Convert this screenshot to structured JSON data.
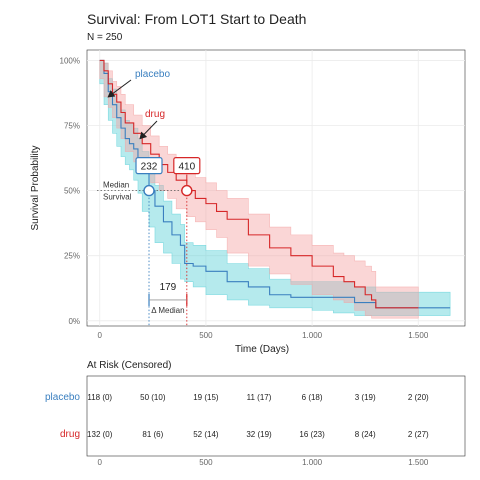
{
  "chart_data": {
    "type": "line",
    "title": "Survival: From LOT1 Start to Death",
    "subtitle": "N = 250",
    "xlabel": "Time (Days)",
    "ylabel": "Survival Probability",
    "xlim": [
      -60,
      1720
    ],
    "ylim": [
      -0.02,
      1.04
    ],
    "x_ticks": [
      0,
      500,
      1000,
      1500
    ],
    "x_tick_labels": [
      "0",
      "500",
      "1.000",
      "1.500"
    ],
    "y_ticks": [
      0,
      0.25,
      0.5,
      0.75,
      1.0
    ],
    "y_tick_labels": [
      "0%",
      "25%",
      "50%",
      "75%",
      "100%"
    ],
    "grid": true,
    "series": [
      {
        "name": "placebo",
        "color": "#3a7fbf",
        "fill": "#5ad0d8",
        "x": [
          0,
          20,
          40,
          60,
          80,
          100,
          120,
          140,
          160,
          180,
          200,
          232,
          260,
          300,
          340,
          380,
          400,
          440,
          500,
          600,
          700,
          800,
          900,
          1000,
          1100,
          1200,
          1300,
          1400,
          1500,
          1600,
          1650
        ],
        "y": [
          1.0,
          0.95,
          0.88,
          0.83,
          0.78,
          0.74,
          0.7,
          0.68,
          0.66,
          0.62,
          0.57,
          0.5,
          0.44,
          0.38,
          0.33,
          0.29,
          0.22,
          0.21,
          0.19,
          0.15,
          0.13,
          0.1,
          0.09,
          0.09,
          0.09,
          0.07,
          0.05,
          0.05,
          0.05,
          0.05,
          0.05
        ],
        "lower": [
          0.97,
          0.91,
          0.83,
          0.77,
          0.72,
          0.67,
          0.63,
          0.6,
          0.58,
          0.54,
          0.49,
          0.42,
          0.36,
          0.3,
          0.26,
          0.22,
          0.16,
          0.15,
          0.13,
          0.1,
          0.08,
          0.06,
          0.05,
          0.05,
          0.04,
          0.03,
          0.02,
          0.02,
          0.02,
          0.02,
          0.02
        ],
        "upper": [
          1.0,
          0.99,
          0.93,
          0.89,
          0.84,
          0.81,
          0.77,
          0.76,
          0.74,
          0.7,
          0.65,
          0.58,
          0.52,
          0.46,
          0.41,
          0.37,
          0.3,
          0.29,
          0.27,
          0.22,
          0.2,
          0.16,
          0.15,
          0.15,
          0.15,
          0.13,
          0.11,
          0.11,
          0.11,
          0.11,
          0.11
        ],
        "median": 232,
        "median_label": "232"
      },
      {
        "name": "drug",
        "color": "#d62728",
        "fill": "#f4a3a3",
        "x": [
          0,
          20,
          40,
          60,
          80,
          100,
          120,
          160,
          200,
          240,
          280,
          320,
          360,
          410,
          450,
          500,
          550,
          600,
          700,
          800,
          900,
          1000,
          1100,
          1150,
          1200,
          1250,
          1280,
          1300,
          1400,
          1500
        ],
        "y": [
          1.0,
          0.96,
          0.91,
          0.87,
          0.84,
          0.8,
          0.76,
          0.72,
          0.68,
          0.64,
          0.6,
          0.57,
          0.54,
          0.5,
          0.47,
          0.45,
          0.42,
          0.39,
          0.33,
          0.28,
          0.25,
          0.21,
          0.17,
          0.15,
          0.13,
          0.1,
          0.08,
          0.05,
          0.05,
          0.05
        ],
        "lower": [
          0.98,
          0.93,
          0.86,
          0.82,
          0.78,
          0.74,
          0.7,
          0.65,
          0.61,
          0.57,
          0.53,
          0.5,
          0.47,
          0.43,
          0.4,
          0.38,
          0.35,
          0.32,
          0.26,
          0.21,
          0.18,
          0.14,
          0.1,
          0.08,
          0.07,
          0.04,
          0.02,
          0.01,
          0.01,
          0.01
        ],
        "upper": [
          1.0,
          0.99,
          0.96,
          0.92,
          0.9,
          0.87,
          0.83,
          0.79,
          0.75,
          0.71,
          0.67,
          0.64,
          0.61,
          0.58,
          0.55,
          0.53,
          0.5,
          0.47,
          0.41,
          0.36,
          0.33,
          0.29,
          0.26,
          0.25,
          0.23,
          0.21,
          0.19,
          0.13,
          0.13,
          0.13
        ],
        "median": 410,
        "median_label": "410"
      }
    ],
    "annotations": {
      "median_line_label_1": "Median",
      "median_line_label_2": "Survival",
      "median_diff": "179",
      "median_diff_label": "Δ Median"
    },
    "risk_table": {
      "title": "At Risk (Censored)",
      "times": [
        0,
        250,
        500,
        750,
        1000,
        1250,
        1500
      ],
      "rows": [
        {
          "name": "placebo",
          "color": "#3a7fbf",
          "values": [
            "118 (0)",
            "50 (10)",
            "19 (15)",
            "11 (17)",
            "6 (18)",
            "3 (19)",
            "2 (20)"
          ]
        },
        {
          "name": "drug",
          "color": "#d62728",
          "values": [
            "132 (0)",
            "81 (6)",
            "52 (14)",
            "32 (19)",
            "16 (23)",
            "8 (24)",
            "2 (27)"
          ]
        }
      ]
    }
  }
}
